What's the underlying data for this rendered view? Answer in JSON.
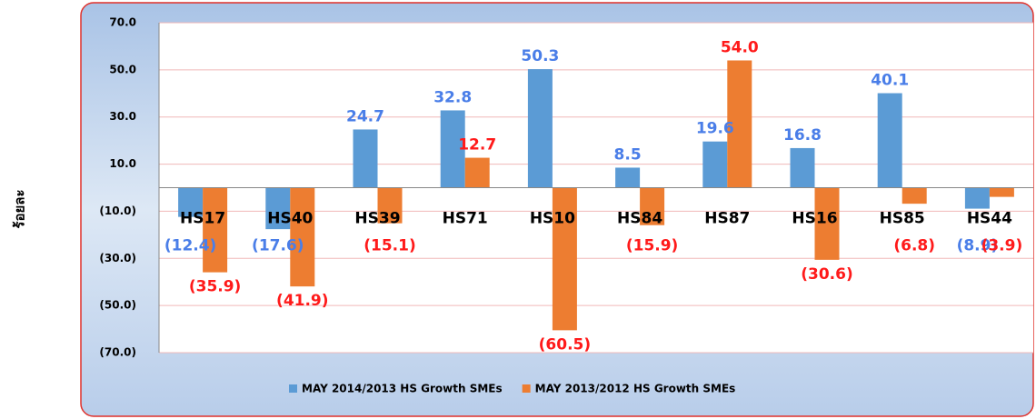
{
  "chart_data": {
    "type": "bar",
    "y_axis_label": "ร้อยละ",
    "categories": [
      "HS17",
      "HS40",
      "HS39",
      "HS71",
      "HS10",
      "HS84",
      "HS87",
      "HS16",
      "HS85",
      "HS44"
    ],
    "series": [
      {
        "name": "MAY 2014/2013 HS Growth SMEs",
        "color": "#5b9bd5",
        "label_color": "#4a7ee8",
        "values": [
          -12.4,
          -17.6,
          24.7,
          32.8,
          50.3,
          8.5,
          19.6,
          16.8,
          40.1,
          -8.9
        ],
        "value_labels": [
          "(12.4)",
          "(17.6)",
          "24.7",
          "32.8",
          "50.3",
          "8.5",
          "19.6",
          "16.8",
          "40.1",
          "(8.9)"
        ]
      },
      {
        "name": "MAY 2013/2012 HS Growth SMEs",
        "color": "#ed7d31",
        "label_color": "#ff1a1a",
        "values": [
          -35.9,
          -41.9,
          -15.1,
          12.7,
          -60.5,
          -15.9,
          54.0,
          -30.6,
          -6.8,
          -3.9
        ],
        "value_labels": [
          "(35.9)",
          "(41.9)",
          "(15.1)",
          "12.7",
          "(60.5)",
          "(15.9)",
          "54.0",
          "(30.6)",
          "(6.8)",
          "(3.9)"
        ]
      }
    ],
    "ylim": [
      -70,
      70
    ],
    "yticks": [
      {
        "value": -70,
        "label": "(70.0)"
      },
      {
        "value": -50,
        "label": "(50.0)"
      },
      {
        "value": -30,
        "label": "(30.0)"
      },
      {
        "value": -10,
        "label": "(10.0)"
      },
      {
        "value": 10,
        "label": "10.0"
      },
      {
        "value": 30,
        "label": "30.0"
      },
      {
        "value": 50,
        "label": "50.0"
      },
      {
        "value": 70,
        "label": "70.0"
      }
    ],
    "grid": true,
    "legend": "bottom"
  }
}
